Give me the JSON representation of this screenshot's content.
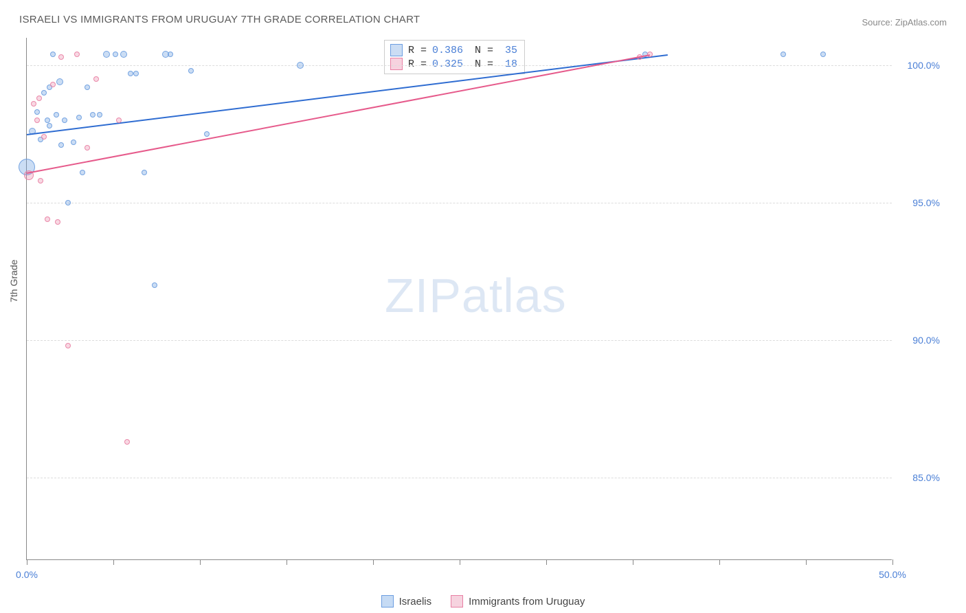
{
  "title": "ISRAELI VS IMMIGRANTS FROM URUGUAY 7TH GRADE CORRELATION CHART",
  "source_label": "Source: ZipAtlas.com",
  "y_axis_title": "7th Grade",
  "watermark": {
    "part1": "ZIP",
    "part2": "atlas"
  },
  "chart": {
    "type": "scatter",
    "x_range": [
      0,
      50
    ],
    "y_range": [
      82,
      101
    ],
    "background_color": "#ffffff",
    "grid_color": "#dcdcdc",
    "axis_color": "#888888",
    "label_color": "#4a7fd6",
    "y_ticks": [
      {
        "value": 85,
        "label": "85.0%"
      },
      {
        "value": 90,
        "label": "90.0%"
      },
      {
        "value": 95,
        "label": "95.0%"
      },
      {
        "value": 100,
        "label": "100.0%"
      }
    ],
    "x_ticks": [
      {
        "value": 0,
        "label": "0.0%"
      },
      {
        "value": 5,
        "label": ""
      },
      {
        "value": 10,
        "label": ""
      },
      {
        "value": 15,
        "label": ""
      },
      {
        "value": 20,
        "label": ""
      },
      {
        "value": 25,
        "label": ""
      },
      {
        "value": 30,
        "label": ""
      },
      {
        "value": 35,
        "label": ""
      },
      {
        "value": 40,
        "label": ""
      },
      {
        "value": 45,
        "label": ""
      },
      {
        "value": 50,
        "label": "50.0%"
      }
    ],
    "series": [
      {
        "name": "Israelis",
        "color": "#6b9de0",
        "fill_opacity": 0.35,
        "stroke_opacity": 0.9,
        "marker_size": 16,
        "trend": {
          "x1": 0,
          "y1": 97.5,
          "x2": 37,
          "y2": 100.4,
          "color": "#2e6cd1",
          "width": 2
        },
        "stats": {
          "R": "0.386",
          "N": "35"
        },
        "points": [
          {
            "x": 0.0,
            "y": 96.3,
            "r": 24
          },
          {
            "x": 0.3,
            "y": 97.6,
            "r": 10
          },
          {
            "x": 0.6,
            "y": 98.3,
            "r": 8
          },
          {
            "x": 0.8,
            "y": 97.3,
            "r": 8
          },
          {
            "x": 1.0,
            "y": 99.0,
            "r": 8
          },
          {
            "x": 1.2,
            "y": 98.0,
            "r": 8
          },
          {
            "x": 1.3,
            "y": 99.2,
            "r": 8
          },
          {
            "x": 1.3,
            "y": 97.8,
            "r": 8
          },
          {
            "x": 1.5,
            "y": 100.4,
            "r": 8
          },
          {
            "x": 1.7,
            "y": 98.2,
            "r": 8
          },
          {
            "x": 1.9,
            "y": 99.4,
            "r": 10
          },
          {
            "x": 2.0,
            "y": 97.1,
            "r": 8
          },
          {
            "x": 2.2,
            "y": 98.0,
            "r": 8
          },
          {
            "x": 2.4,
            "y": 95.0,
            "r": 8
          },
          {
            "x": 2.7,
            "y": 97.2,
            "r": 8
          },
          {
            "x": 3.0,
            "y": 98.1,
            "r": 8
          },
          {
            "x": 3.2,
            "y": 96.1,
            "r": 8
          },
          {
            "x": 3.5,
            "y": 99.2,
            "r": 8
          },
          {
            "x": 3.8,
            "y": 98.2,
            "r": 8
          },
          {
            "x": 4.2,
            "y": 98.2,
            "r": 8
          },
          {
            "x": 4.6,
            "y": 100.4,
            "r": 10
          },
          {
            "x": 5.1,
            "y": 100.4,
            "r": 8
          },
          {
            "x": 5.6,
            "y": 100.4,
            "r": 10
          },
          {
            "x": 6.0,
            "y": 99.7,
            "r": 8
          },
          {
            "x": 6.3,
            "y": 99.7,
            "r": 8
          },
          {
            "x": 6.8,
            "y": 96.1,
            "r": 8
          },
          {
            "x": 7.4,
            "y": 92.0,
            "r": 8
          },
          {
            "x": 8.0,
            "y": 100.4,
            "r": 10
          },
          {
            "x": 8.3,
            "y": 100.4,
            "r": 8
          },
          {
            "x": 9.5,
            "y": 99.8,
            "r": 8
          },
          {
            "x": 10.4,
            "y": 97.5,
            "r": 8
          },
          {
            "x": 15.8,
            "y": 100.0,
            "r": 10
          },
          {
            "x": 35.7,
            "y": 100.4,
            "r": 8
          },
          {
            "x": 43.7,
            "y": 100.4,
            "r": 8
          },
          {
            "x": 46.0,
            "y": 100.4,
            "r": 8
          }
        ]
      },
      {
        "name": "Immigrants from Uruguay",
        "color": "#e87fa3",
        "fill_opacity": 0.3,
        "stroke_opacity": 0.9,
        "marker_size": 16,
        "trend": {
          "x1": 0,
          "y1": 96.1,
          "x2": 36,
          "y2": 100.4,
          "color": "#e65a8b",
          "width": 2
        },
        "stats": {
          "R": "0.325",
          "N": "18"
        },
        "points": [
          {
            "x": 0.1,
            "y": 96.0,
            "r": 14
          },
          {
            "x": 0.4,
            "y": 98.6,
            "r": 8
          },
          {
            "x": 0.6,
            "y": 98.0,
            "r": 8
          },
          {
            "x": 0.7,
            "y": 98.8,
            "r": 8
          },
          {
            "x": 0.8,
            "y": 95.8,
            "r": 8
          },
          {
            "x": 1.0,
            "y": 97.4,
            "r": 8
          },
          {
            "x": 1.2,
            "y": 94.4,
            "r": 8
          },
          {
            "x": 1.5,
            "y": 99.3,
            "r": 8
          },
          {
            "x": 1.8,
            "y": 94.3,
            "r": 8
          },
          {
            "x": 2.0,
            "y": 100.3,
            "r": 8
          },
          {
            "x": 2.4,
            "y": 89.8,
            "r": 8
          },
          {
            "x": 2.9,
            "y": 100.4,
            "r": 8
          },
          {
            "x": 3.5,
            "y": 97.0,
            "r": 8
          },
          {
            "x": 4.0,
            "y": 99.5,
            "r": 8
          },
          {
            "x": 5.3,
            "y": 98.0,
            "r": 8
          },
          {
            "x": 5.8,
            "y": 86.3,
            "r": 8
          },
          {
            "x": 35.4,
            "y": 100.3,
            "r": 8
          },
          {
            "x": 36.0,
            "y": 100.4,
            "r": 8
          }
        ]
      }
    ],
    "legend": [
      {
        "label": "Israelis",
        "color": "#6b9de0",
        "fill": "#c6dbf4"
      },
      {
        "label": "Immigrants from Uruguay",
        "color": "#e87fa3",
        "fill": "#f6d3df"
      }
    ],
    "stats_box": {
      "border_color": "#cccccc",
      "text_color": "#333333",
      "value_color": "#4a7fd6"
    }
  }
}
